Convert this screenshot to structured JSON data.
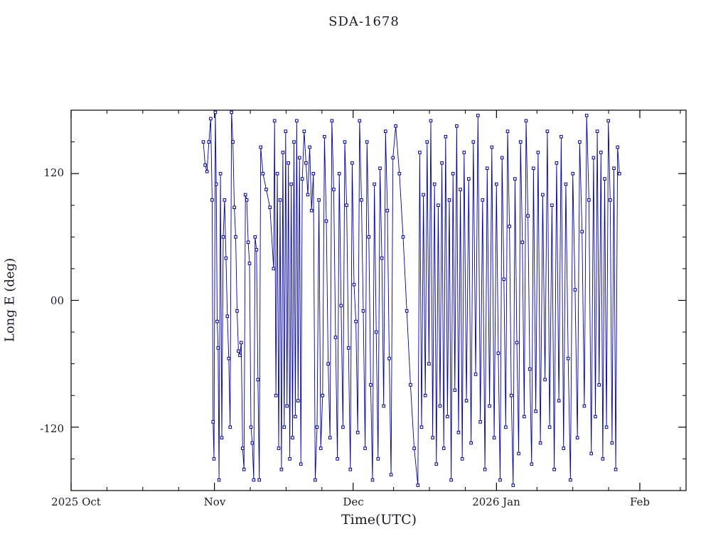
{
  "chart_data": {
    "type": "line",
    "title": "SDA-1678",
    "xlabel": "Time(UTC)",
    "ylabel": "Long E (deg)",
    "x_unit": "days since 2025-10-01",
    "xlim": [
      0,
      133
    ],
    "ylim": [
      -180,
      180
    ],
    "grid": false,
    "legend": "none",
    "line_color": "#0000a0",
    "axis_color": "#000000",
    "marker": "square",
    "xticks": [
      {
        "pos": 0,
        "label": "2025 Oct"
      },
      {
        "pos": 31,
        "label": "Nov"
      },
      {
        "pos": 61,
        "label": "Dec"
      },
      {
        "pos": 92,
        "label": "2026 Jan"
      },
      {
        "pos": 123,
        "label": "Feb"
      }
    ],
    "yticks": [
      {
        "pos": 120,
        "label": "120"
      },
      {
        "pos": 0,
        "label": "00"
      },
      {
        "pos": -120,
        "label": "-120"
      }
    ],
    "points": [
      [
        28.6,
        150
      ],
      [
        29.0,
        128
      ],
      [
        29.4,
        122
      ],
      [
        29.8,
        150
      ],
      [
        30.2,
        172
      ],
      [
        30.5,
        95
      ],
      [
        30.7,
        -115
      ],
      [
        30.9,
        -150
      ],
      [
        31.2,
        178
      ],
      [
        31.4,
        110
      ],
      [
        31.6,
        -20
      ],
      [
        31.8,
        -45
      ],
      [
        32.0,
        -170
      ],
      [
        32.3,
        120
      ],
      [
        32.6,
        -130
      ],
      [
        32.9,
        60
      ],
      [
        33.2,
        95
      ],
      [
        33.5,
        40
      ],
      [
        33.8,
        -15
      ],
      [
        34.1,
        -55
      ],
      [
        34.4,
        -120
      ],
      [
        34.7,
        178
      ],
      [
        35.0,
        150
      ],
      [
        35.3,
        88
      ],
      [
        35.6,
        60
      ],
      [
        35.9,
        -10
      ],
      [
        36.2,
        -48
      ],
      [
        36.5,
        -52
      ],
      [
        36.8,
        -40
      ],
      [
        37.1,
        -140
      ],
      [
        37.4,
        -160
      ],
      [
        37.7,
        100
      ],
      [
        38.0,
        95
      ],
      [
        38.3,
        55
      ],
      [
        38.6,
        35
      ],
      [
        38.9,
        -120
      ],
      [
        39.2,
        -135
      ],
      [
        39.5,
        -170
      ],
      [
        39.8,
        60
      ],
      [
        40.1,
        48
      ],
      [
        40.4,
        -75
      ],
      [
        40.7,
        -170
      ],
      [
        41.0,
        145
      ],
      [
        41.5,
        120
      ],
      [
        42.2,
        105
      ],
      [
        43.0,
        88
      ],
      [
        43.8,
        30
      ],
      [
        44.0,
        170
      ],
      [
        44.3,
        -90
      ],
      [
        44.6,
        120
      ],
      [
        44.9,
        -140
      ],
      [
        45.2,
        95
      ],
      [
        45.5,
        -160
      ],
      [
        45.8,
        140
      ],
      [
        46.1,
        -120
      ],
      [
        46.4,
        160
      ],
      [
        46.7,
        -100
      ],
      [
        47.0,
        130
      ],
      [
        47.3,
        -150
      ],
      [
        47.6,
        110
      ],
      [
        47.9,
        -130
      ],
      [
        48.2,
        150
      ],
      [
        48.5,
        -110
      ],
      [
        48.8,
        170
      ],
      [
        49.1,
        -95
      ],
      [
        49.4,
        135
      ],
      [
        49.7,
        -155
      ],
      [
        50.0,
        115
      ],
      [
        50.4,
        160
      ],
      [
        50.8,
        130
      ],
      [
        51.2,
        100
      ],
      [
        51.6,
        145
      ],
      [
        52.0,
        85
      ],
      [
        52.4,
        120
      ],
      [
        52.8,
        -170
      ],
      [
        53.2,
        -120
      ],
      [
        53.6,
        95
      ],
      [
        54.0,
        -140
      ],
      [
        54.4,
        -90
      ],
      [
        54.8,
        155
      ],
      [
        55.2,
        75
      ],
      [
        55.6,
        -60
      ],
      [
        56.0,
        -130
      ],
      [
        56.4,
        170
      ],
      [
        56.8,
        105
      ],
      [
        57.2,
        -35
      ],
      [
        57.6,
        -150
      ],
      [
        58.0,
        120
      ],
      [
        58.4,
        -5
      ],
      [
        58.8,
        -120
      ],
      [
        59.2,
        150
      ],
      [
        59.6,
        90
      ],
      [
        60.0,
        -45
      ],
      [
        60.4,
        -160
      ],
      [
        60.8,
        130
      ],
      [
        61.2,
        15
      ],
      [
        61.6,
        -20
      ],
      [
        62.0,
        -125
      ],
      [
        62.4,
        170
      ],
      [
        62.8,
        95
      ],
      [
        63.2,
        -10
      ],
      [
        63.6,
        -140
      ],
      [
        64.0,
        150
      ],
      [
        64.4,
        60
      ],
      [
        64.8,
        -80
      ],
      [
        65.2,
        -170
      ],
      [
        65.6,
        110
      ],
      [
        66.0,
        -30
      ],
      [
        66.4,
        -150
      ],
      [
        66.8,
        125
      ],
      [
        67.2,
        40
      ],
      [
        67.6,
        -100
      ],
      [
        68.0,
        160
      ],
      [
        68.4,
        85
      ],
      [
        68.8,
        -55
      ],
      [
        69.2,
        -165
      ],
      [
        69.6,
        135
      ],
      [
        70.2,
        165
      ],
      [
        71.0,
        120
      ],
      [
        71.8,
        60
      ],
      [
        72.6,
        -10
      ],
      [
        73.4,
        -80
      ],
      [
        74.2,
        -140
      ],
      [
        75.0,
        -175
      ],
      [
        75.4,
        140
      ],
      [
        75.8,
        -120
      ],
      [
        76.2,
        100
      ],
      [
        76.6,
        -90
      ],
      [
        77.0,
        150
      ],
      [
        77.4,
        -60
      ],
      [
        77.8,
        170
      ],
      [
        78.2,
        -130
      ],
      [
        78.6,
        110
      ],
      [
        79.0,
        -155
      ],
      [
        79.4,
        90
      ],
      [
        79.8,
        -100
      ],
      [
        80.2,
        130
      ],
      [
        80.6,
        -140
      ],
      [
        81.0,
        155
      ],
      [
        81.4,
        -110
      ],
      [
        81.8,
        95
      ],
      [
        82.2,
        -170
      ],
      [
        82.6,
        120
      ],
      [
        83.0,
        -85
      ],
      [
        83.4,
        165
      ],
      [
        83.8,
        -125
      ],
      [
        84.2,
        105
      ],
      [
        84.6,
        -150
      ],
      [
        85.0,
        140
      ],
      [
        85.5,
        -95
      ],
      [
        86.0,
        115
      ],
      [
        86.5,
        -135
      ],
      [
        87.0,
        150
      ],
      [
        87.5,
        -70
      ],
      [
        88.0,
        175
      ],
      [
        88.5,
        -115
      ],
      [
        89.0,
        95
      ],
      [
        89.5,
        -160
      ],
      [
        90.0,
        125
      ],
      [
        90.5,
        -100
      ],
      [
        91.0,
        145
      ],
      [
        91.5,
        -130
      ],
      [
        92.0,
        110
      ],
      [
        92.4,
        -50
      ],
      [
        92.8,
        -170
      ],
      [
        93.2,
        135
      ],
      [
        93.6,
        20
      ],
      [
        94.0,
        -120
      ],
      [
        94.4,
        160
      ],
      [
        94.8,
        70
      ],
      [
        95.2,
        -90
      ],
      [
        95.6,
        -175
      ],
      [
        96.0,
        115
      ],
      [
        96.4,
        -40
      ],
      [
        96.8,
        -145
      ],
      [
        97.2,
        150
      ],
      [
        97.6,
        55
      ],
      [
        98.0,
        -110
      ],
      [
        98.4,
        170
      ],
      [
        98.8,
        80
      ],
      [
        99.2,
        -65
      ],
      [
        99.6,
        -155
      ],
      [
        100.0,
        125
      ],
      [
        100.5,
        -105
      ],
      [
        101.0,
        140
      ],
      [
        101.5,
        -135
      ],
      [
        102.0,
        100
      ],
      [
        102.5,
        -75
      ],
      [
        103.0,
        160
      ],
      [
        103.5,
        -120
      ],
      [
        104.0,
        90
      ],
      [
        104.5,
        -160
      ],
      [
        105.0,
        130
      ],
      [
        105.5,
        -95
      ],
      [
        106.0,
        155
      ],
      [
        106.5,
        -140
      ],
      [
        107.0,
        110
      ],
      [
        107.5,
        -55
      ],
      [
        108.0,
        -170
      ],
      [
        108.5,
        120
      ],
      [
        109.0,
        10
      ],
      [
        109.5,
        -130
      ],
      [
        110.0,
        150
      ],
      [
        110.5,
        65
      ],
      [
        111.0,
        -100
      ],
      [
        111.5,
        175
      ],
      [
        112.0,
        95
      ],
      [
        112.5,
        -145
      ],
      [
        113.0,
        135
      ],
      [
        113.4,
        -110
      ],
      [
        113.8,
        160
      ],
      [
        114.2,
        -80
      ],
      [
        114.6,
        140
      ],
      [
        115.0,
        -150
      ],
      [
        115.4,
        115
      ],
      [
        115.8,
        -120
      ],
      [
        116.2,
        170
      ],
      [
        116.6,
        95
      ],
      [
        117.0,
        -135
      ],
      [
        117.4,
        125
      ],
      [
        117.8,
        -160
      ],
      [
        118.2,
        145
      ],
      [
        118.6,
        120
      ]
    ]
  }
}
